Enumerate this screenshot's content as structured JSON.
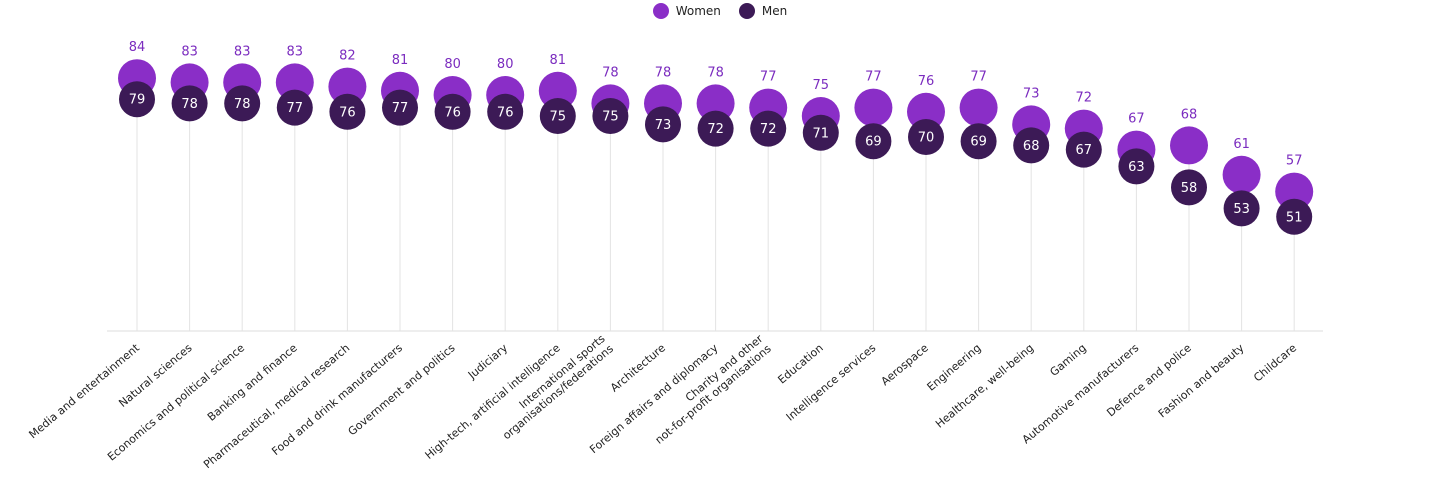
{
  "legend": {
    "women_label": "Women",
    "men_label": "Men"
  },
  "colors": {
    "women": "#8a2ec7",
    "men": "#3c1a56",
    "women_text": "#7b2cbf",
    "gridline": "#e3e3e3",
    "baseline": "#dcdcdc"
  },
  "chart_data": {
    "type": "scatter",
    "categories": [
      "Media and entertainment",
      "Natural sciences",
      "Economics and political science",
      "Banking and finance",
      "Pharmaceutical, medical research",
      "Food and drink manufacturers",
      "Government and politics",
      "Judiciary",
      "High-tech, artificial intelligence",
      "International sports\norganisations/federations",
      "Architecture",
      "Foreign affairs and diplomacy",
      "Charity and other\nnot-for-profit organisations",
      "Education",
      "Intelligence services",
      "Aerospace",
      "Engineering",
      "Healthcare, well-being",
      "Gaming",
      "Automotive manufacturers",
      "Defence and police",
      "Fashion and beauty",
      "Childcare"
    ],
    "series": [
      {
        "name": "Women",
        "values": [
          84,
          83,
          83,
          83,
          82,
          81,
          80,
          80,
          81,
          78,
          78,
          78,
          77,
          75,
          77,
          76,
          77,
          73,
          72,
          67,
          68,
          61,
          57
        ]
      },
      {
        "name": "Men",
        "values": [
          79,
          78,
          78,
          77,
          76,
          77,
          76,
          76,
          75,
          75,
          73,
          72,
          72,
          71,
          69,
          70,
          69,
          68,
          67,
          63,
          58,
          53,
          51
        ]
      }
    ],
    "legend_position": "top-center",
    "grid": false
  }
}
